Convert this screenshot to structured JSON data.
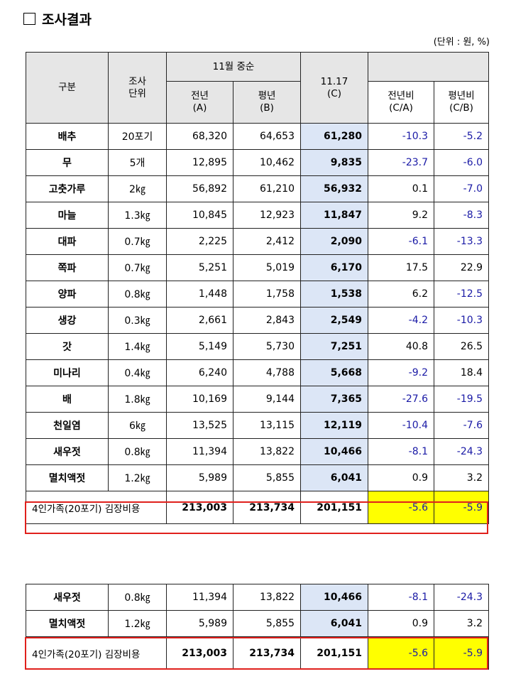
{
  "title": "조사결과",
  "unit_note": "(단위 : 원, %)",
  "headers": {
    "category": "구분",
    "unit": "조사\n단위",
    "nov_mid": "11월 중순",
    "prev_year": "전년\n(A)",
    "avg_year": "평년\n(B)",
    "current": "11.17\n(C)",
    "vs_prev": "전년비\n(C/A)",
    "vs_avg": "평년비\n(C/B)"
  },
  "rows": [
    {
      "name": "배추",
      "unit": "20포기",
      "a": "68,320",
      "b": "64,653",
      "c": "61,280",
      "ca": "-10.3",
      "cb": "-5.2"
    },
    {
      "name": "무",
      "unit": "5개",
      "a": "12,895",
      "b": "10,462",
      "c": "9,835",
      "ca": "-23.7",
      "cb": "-6.0"
    },
    {
      "name": "고춧가루",
      "unit": "2㎏",
      "a": "56,892",
      "b": "61,210",
      "c": "56,932",
      "ca": "0.1",
      "cb": "-7.0"
    },
    {
      "name": "마늘",
      "unit": "1.3㎏",
      "a": "10,845",
      "b": "12,923",
      "c": "11,847",
      "ca": "9.2",
      "cb": "-8.3"
    },
    {
      "name": "대파",
      "unit": "0.7㎏",
      "a": "2,225",
      "b": "2,412",
      "c": "2,090",
      "ca": "-6.1",
      "cb": "-13.3"
    },
    {
      "name": "쪽파",
      "unit": "0.7㎏",
      "a": "5,251",
      "b": "5,019",
      "c": "6,170",
      "ca": "17.5",
      "cb": "22.9"
    },
    {
      "name": "양파",
      "unit": "0.8㎏",
      "a": "1,448",
      "b": "1,758",
      "c": "1,538",
      "ca": "6.2",
      "cb": "-12.5"
    },
    {
      "name": "생강",
      "unit": "0.3㎏",
      "a": "2,661",
      "b": "2,843",
      "c": "2,549",
      "ca": "-4.2",
      "cb": "-10.3"
    },
    {
      "name": "갓",
      "unit": "1.4㎏",
      "a": "5,149",
      "b": "5,730",
      "c": "7,251",
      "ca": "40.8",
      "cb": "26.5"
    },
    {
      "name": "미나리",
      "unit": "0.4㎏",
      "a": "6,240",
      "b": "4,788",
      "c": "5,668",
      "ca": "-9.2",
      "cb": "18.4"
    },
    {
      "name": "배",
      "unit": "1.8㎏",
      "a": "10,169",
      "b": "9,144",
      "c": "7,365",
      "ca": "-27.6",
      "cb": "-19.5"
    },
    {
      "name": "천일염",
      "unit": "6㎏",
      "a": "13,525",
      "b": "13,115",
      "c": "12,119",
      "ca": "-10.4",
      "cb": "-7.6"
    },
    {
      "name": "새우젓",
      "unit": "0.8㎏",
      "a": "11,394",
      "b": "13,822",
      "c": "10,466",
      "ca": "-8.1",
      "cb": "-24.3"
    },
    {
      "name": "멸치액젓",
      "unit": "1.2㎏",
      "a": "5,989",
      "b": "5,855",
      "c": "6,041",
      "ca": "0.9",
      "cb": "3.2"
    }
  ],
  "total": {
    "name": "4인가족(20포기) 김장비용",
    "a": "213,003",
    "b": "213,734",
    "c": "201,151",
    "ca": "-5.6",
    "cb": "-5.9"
  },
  "rows2": [
    {
      "name": "새우젓",
      "unit": "0.8㎏",
      "a": "11,394",
      "b": "13,822",
      "c": "10,466",
      "ca": "-8.1",
      "cb": "-24.3"
    },
    {
      "name": "멸치액젓",
      "unit": "1.2㎏",
      "a": "5,989",
      "b": "5,855",
      "c": "6,041",
      "ca": "0.9",
      "cb": "3.2"
    }
  ],
  "total2": {
    "name": "4인가족(20포기) 김장비용",
    "a": "213,003",
    "b": "213,734",
    "c": "201,151",
    "ca": "-5.6",
    "cb": "-5.9"
  },
  "colors": {
    "negative": "#1a1aa6",
    "highlight": "#ffff00",
    "current_col": "#dce6f6",
    "box": "#e0201c"
  }
}
